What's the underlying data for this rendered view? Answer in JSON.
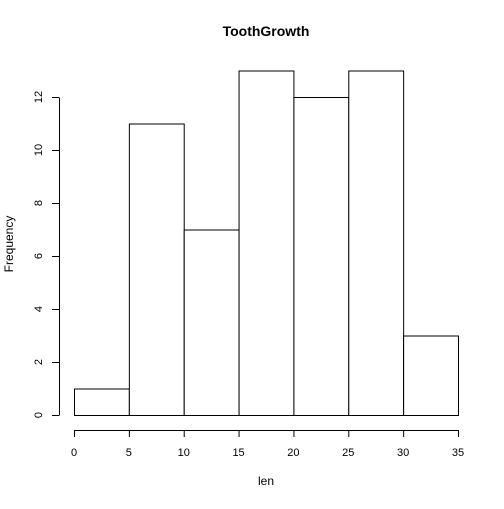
{
  "chart_data": {
    "type": "bar",
    "title": "ToothGrowth",
    "xlabel": "len",
    "ylabel": "Frequency",
    "bins": [
      {
        "start": 0,
        "end": 5,
        "count": 1
      },
      {
        "start": 5,
        "end": 10,
        "count": 11
      },
      {
        "start": 10,
        "end": 15,
        "count": 7
      },
      {
        "start": 15,
        "end": 20,
        "count": 13
      },
      {
        "start": 20,
        "end": 25,
        "count": 12
      },
      {
        "start": 25,
        "end": 30,
        "count": 13
      },
      {
        "start": 30,
        "end": 35,
        "count": 3
      }
    ],
    "xlim": [
      0,
      35
    ],
    "ylim": [
      0,
      13
    ],
    "x_ticks": [
      "0",
      "5",
      "10",
      "15",
      "20",
      "25",
      "30",
      "35"
    ],
    "y_ticks": [
      "0",
      "2",
      "4",
      "6",
      "8",
      "10",
      "12"
    ],
    "grid": false,
    "bar_fill": "#ffffff",
    "bar_stroke": "#000000"
  }
}
